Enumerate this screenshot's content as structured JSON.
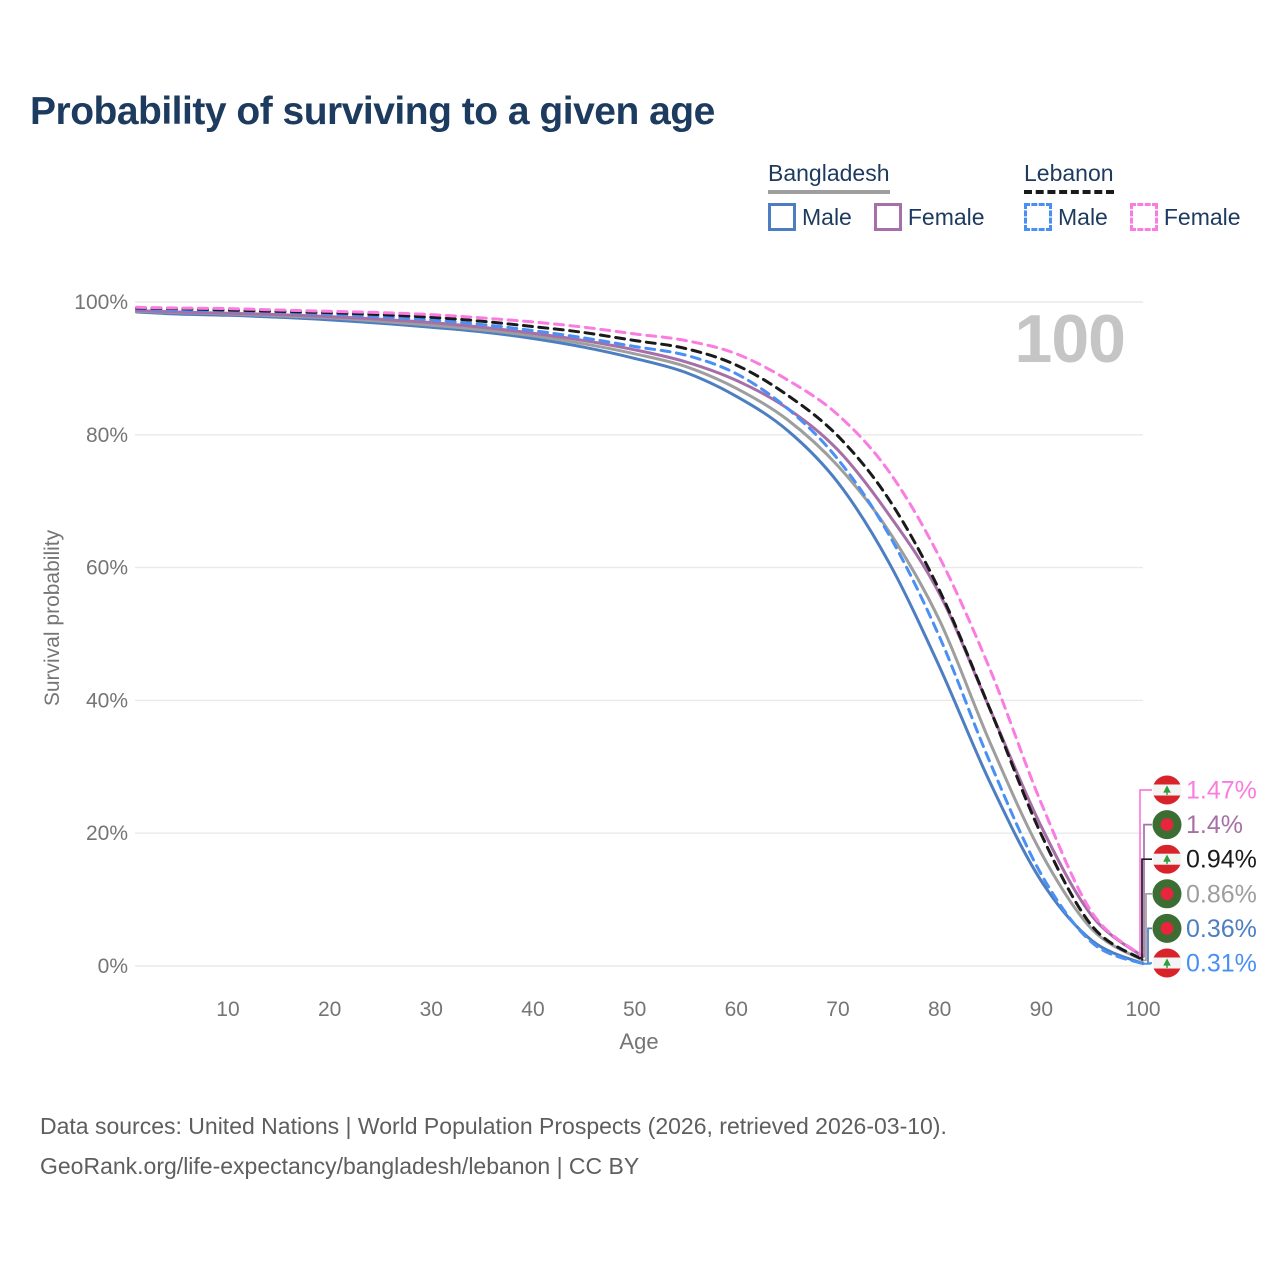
{
  "title": "Probability of surviving to a given age",
  "watermark_age": "100",
  "legend": {
    "groups": [
      {
        "country": "Bangladesh",
        "line_style": "solid",
        "underline_color": "#9e9e9e",
        "items": [
          {
            "label": "Male",
            "color": "#4d7ec2"
          },
          {
            "label": "Female",
            "color": "#a76fa8"
          }
        ]
      },
      {
        "country": "Lebanon",
        "line_style": "dashed",
        "underline_color": "#1a1a1a",
        "items": [
          {
            "label": "Male",
            "color": "#4a90f4"
          },
          {
            "label": "Female",
            "color": "#fb7ce1"
          }
        ]
      }
    ]
  },
  "end_labels": [
    {
      "text": "1.47%",
      "value": 1.47,
      "color": "#fb7ce1",
      "flag": "lebanon"
    },
    {
      "text": "1.4%",
      "value": 1.4,
      "color": "#a76fa8",
      "flag": "bangladesh"
    },
    {
      "text": "0.94%",
      "value": 0.94,
      "color": "#1a1a1a",
      "flag": "lebanon"
    },
    {
      "text": "0.86%",
      "value": 0.86,
      "color": "#9e9e9e",
      "flag": "bangladesh"
    },
    {
      "text": "0.36%",
      "value": 0.36,
      "color": "#4d7ec2",
      "flag": "bangladesh"
    },
    {
      "text": "0.31%",
      "value": 0.31,
      "color": "#4a90f4",
      "flag": "lebanon"
    }
  ],
  "chart_data": {
    "type": "line",
    "title": "Probability of surviving to a given age",
    "xlabel": "Age",
    "ylabel": "Survival probability",
    "xlim": [
      1,
      100
    ],
    "ylim": [
      0,
      100
    ],
    "grid": true,
    "x_ticks": [
      10,
      20,
      30,
      40,
      50,
      60,
      70,
      80,
      90,
      100
    ],
    "y_ticks": [
      {
        "value": 100,
        "label": "100%"
      },
      {
        "value": 80,
        "label": "80%"
      },
      {
        "value": 60,
        "label": "60%"
      },
      {
        "value": 40,
        "label": "40%"
      },
      {
        "value": 20,
        "label": "20%"
      },
      {
        "value": 0,
        "label": "0%"
      }
    ],
    "x": [
      1,
      5,
      10,
      15,
      20,
      25,
      30,
      35,
      40,
      45,
      50,
      55,
      60,
      65,
      70,
      75,
      80,
      85,
      90,
      95,
      100
    ],
    "series": [
      {
        "name": "Bangladesh Male",
        "color": "#4d7ec2",
        "dash": null,
        "values": [
          98.5,
          98.2,
          98.0,
          97.7,
          97.3,
          96.8,
          96.2,
          95.5,
          94.5,
          93.2,
          91.5,
          89.4,
          85.8,
          80.7,
          72.8,
          60.8,
          45.0,
          27.5,
          12.8,
          3.8,
          0.36
        ]
      },
      {
        "name": "Bangladesh (both sexes)",
        "color": "#9e9e9e",
        "dash": null,
        "values": [
          98.6,
          98.4,
          98.2,
          97.9,
          97.6,
          97.1,
          96.5,
          95.8,
          94.9,
          93.7,
          92.2,
          90.3,
          87.0,
          82.3,
          75.3,
          65.5,
          52.0,
          33.5,
          17.0,
          5.5,
          0.86
        ]
      },
      {
        "name": "Bangladesh Female",
        "color": "#a76fa8",
        "dash": null,
        "values": [
          98.7,
          98.5,
          98.3,
          98.1,
          97.8,
          97.4,
          96.9,
          96.2,
          95.3,
          94.2,
          92.8,
          91.0,
          88.2,
          84.0,
          77.7,
          68.0,
          56.0,
          38.5,
          21.0,
          7.5,
          1.4
        ]
      },
      {
        "name": "Lebanon Male",
        "color": "#4a90f4",
        "dash": [
          9,
          6.5
        ],
        "values": [
          99.0,
          98.8,
          98.7,
          98.5,
          98.2,
          97.8,
          97.3,
          96.6,
          95.7,
          94.6,
          93.3,
          92.0,
          89.2,
          84.0,
          76.3,
          65.0,
          49.5,
          30.5,
          13.8,
          3.5,
          0.31
        ]
      },
      {
        "name": "Lebanon (both sexes)",
        "color": "#1a1a1a",
        "dash": [
          9,
          6.5
        ],
        "values": [
          99.1,
          99.0,
          98.8,
          98.6,
          98.4,
          98.1,
          97.7,
          97.1,
          96.3,
          95.4,
          94.2,
          93.0,
          90.5,
          86.0,
          79.8,
          70.3,
          56.5,
          38.5,
          19.8,
          6.0,
          0.94
        ]
      },
      {
        "name": "Lebanon Female",
        "color": "#fb7ce1",
        "dash": [
          9,
          6.5
        ],
        "values": [
          99.2,
          99.1,
          99.0,
          98.8,
          98.6,
          98.4,
          98.1,
          97.6,
          97.0,
          96.2,
          95.2,
          94.2,
          92.2,
          88.3,
          83.0,
          74.5,
          61.5,
          44.5,
          24.5,
          8.0,
          1.47
        ]
      }
    ]
  },
  "footer": {
    "line1": "Data sources: United Nations | World Population Prospects (2026, retrieved 2026-03-10).",
    "line2": "GeoRank.org/life-expectancy/bangladesh/lebanon | CC BY"
  }
}
